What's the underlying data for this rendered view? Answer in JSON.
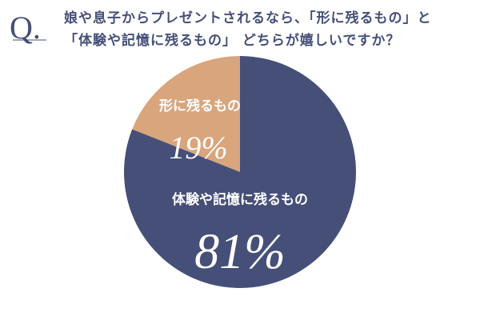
{
  "chart_data": {
    "type": "pie",
    "question_mark": "Q.",
    "title_lines": [
      "娘や息子からプレゼントされるなら、「形に残るもの」と",
      "「体験や記憶に残るもの」 どちらが嬉しいですか？"
    ],
    "categories": [
      "形に残るもの",
      "体験や記憶に残るもの"
    ],
    "values": [
      19,
      81
    ],
    "value_labels": [
      "19%",
      "81%"
    ],
    "colors": [
      "#d9a57d",
      "#454f78"
    ]
  }
}
